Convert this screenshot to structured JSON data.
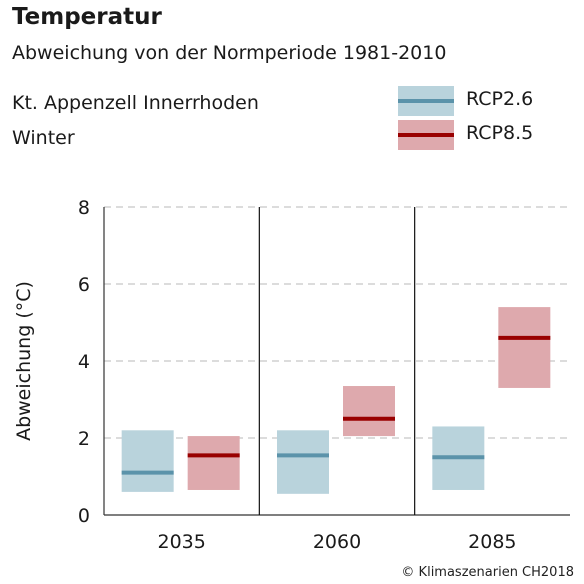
{
  "header": {
    "title": "Temperatur",
    "subtitle": "Abweichung von der Normperiode 1981-2010",
    "region": "Kt. Appenzell Innerrhoden",
    "season": "Winter"
  },
  "legend": [
    {
      "label": "RCP2.6",
      "box_color": "#b9d3dc",
      "line_color": "#5b93aa"
    },
    {
      "label": "RCP8.5",
      "box_color": "#dea9ad",
      "line_color": "#990000"
    }
  ],
  "copyright": "© Klimaszenarien CH2018",
  "chart_data": {
    "type": "bar",
    "title": "Temperatur",
    "ylabel": "Abweichung (°C)",
    "xlabel": "",
    "ylim": [
      0,
      8
    ],
    "yticks": [
      0,
      2,
      4,
      6,
      8
    ],
    "grid": true,
    "legend_position": "top-right",
    "categories": [
      "2035",
      "2060",
      "2085"
    ],
    "series": [
      {
        "name": "RCP2.6",
        "color": "#5b93aa",
        "range_color": "#b9d3dc",
        "median": [
          1.1,
          1.55,
          1.5
        ],
        "low": [
          0.6,
          0.55,
          0.65
        ],
        "high": [
          2.2,
          2.2,
          2.3
        ]
      },
      {
        "name": "RCP8.5",
        "color": "#990000",
        "range_color": "#dea9ad",
        "median": [
          1.55,
          2.5,
          4.6
        ],
        "low": [
          0.65,
          2.05,
          3.3
        ],
        "high": [
          2.05,
          3.35,
          5.4
        ]
      }
    ]
  }
}
